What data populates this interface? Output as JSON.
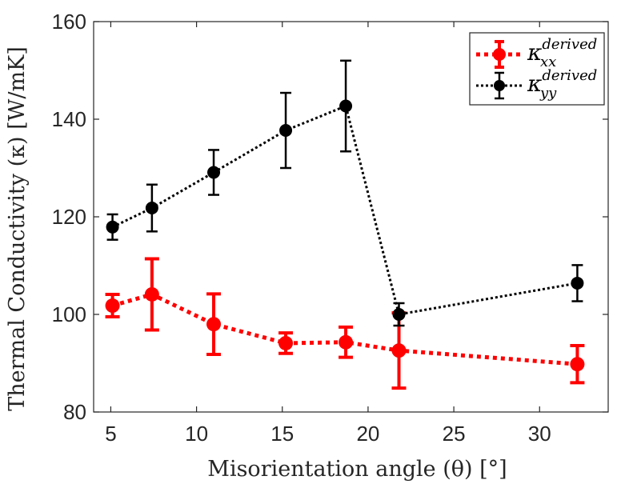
{
  "chart_data": {
    "type": "line",
    "title": "",
    "xlabel": "Misorientation angle (θ) [°]",
    "ylabel": "Thermal Conductivity (κ) [W/mK]",
    "xlim": [
      4,
      34
    ],
    "ylim": [
      80,
      160
    ],
    "xticks": [
      5,
      10,
      15,
      20,
      25,
      30
    ],
    "yticks": [
      80,
      100,
      120,
      140,
      160
    ],
    "grid": false,
    "legend_position": "top-right",
    "series": [
      {
        "name_base": "κ",
        "name_sup": "derived",
        "name_sub": "xx",
        "color": "#ff0000",
        "style": "dotted-thick",
        "x": [
          5.1,
          7.4,
          11.0,
          15.2,
          18.7,
          21.8,
          32.2
        ],
        "y": [
          101.8,
          104.1,
          98.0,
          94.1,
          94.3,
          92.6,
          89.8
        ],
        "err": [
          2.3,
          7.3,
          6.2,
          2.1,
          3.1,
          7.7,
          3.8
        ]
      },
      {
        "name_base": "κ",
        "name_sup": "derived",
        "name_sub": "yy",
        "color": "#000000",
        "style": "dotted-thin",
        "x": [
          5.1,
          7.4,
          11.0,
          15.2,
          18.7,
          21.8,
          32.2
        ],
        "y": [
          117.9,
          121.8,
          129.1,
          137.7,
          142.7,
          100.0,
          106.4
        ],
        "err": [
          2.6,
          4.8,
          4.6,
          7.7,
          9.3,
          2.3,
          3.7
        ]
      }
    ]
  }
}
